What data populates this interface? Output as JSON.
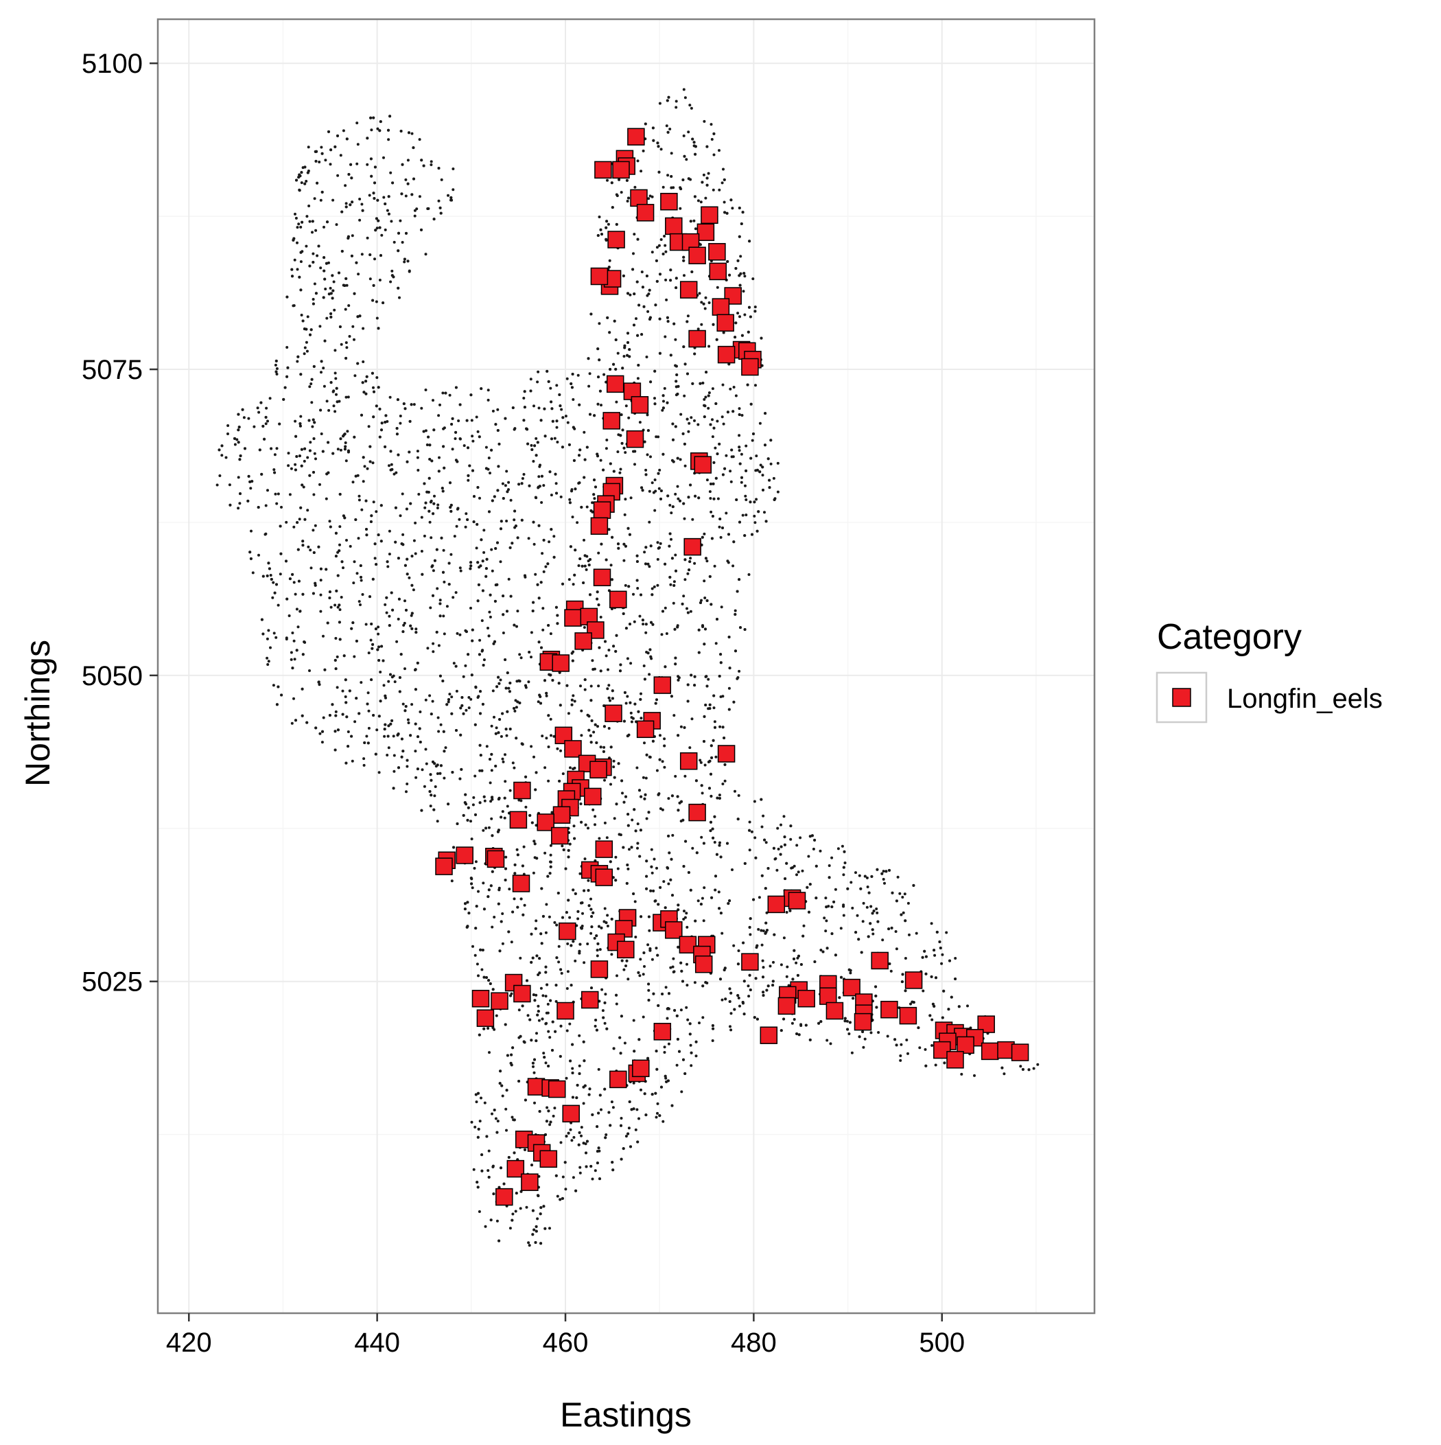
{
  "chart_data": {
    "type": "scatter",
    "xlabel": "Eastings",
    "ylabel": "Northings",
    "xlim": [
      416.7,
      516.2
    ],
    "ylim": [
      4997.9,
      5103.6
    ],
    "x_ticks": [
      420,
      440,
      460,
      480,
      500
    ],
    "y_ticks": [
      5025,
      5050,
      5075,
      5100
    ],
    "grid": true,
    "legend": {
      "title": "Category",
      "position": "right",
      "entries": [
        "Longfin_eels"
      ]
    },
    "colors": {
      "points": "#ed1c24",
      "point_outline": "#000000",
      "background_dots": "#1a1a1a",
      "panel_border": "#7f7f7f",
      "grid_major": "#ebebeb",
      "grid_minor": "#f5f5f5"
    },
    "background_note": "Dense field of small black dots covering the catchment shape",
    "series": [
      {
        "name": "Longfin_eels",
        "marker": "square",
        "points": [
          [
            467.5,
            5094.0
          ],
          [
            466.3,
            5092.2
          ],
          [
            466.5,
            5091.6
          ],
          [
            464.0,
            5091.3
          ],
          [
            465.9,
            5091.3
          ],
          [
            467.8,
            5089.0
          ],
          [
            471.0,
            5088.7
          ],
          [
            468.5,
            5087.8
          ],
          [
            475.3,
            5087.6
          ],
          [
            471.5,
            5086.7
          ],
          [
            474.9,
            5086.2
          ],
          [
            472.0,
            5085.4
          ],
          [
            465.4,
            5085.6
          ],
          [
            473.3,
            5085.4
          ],
          [
            476.1,
            5084.6
          ],
          [
            474.0,
            5084.3
          ],
          [
            476.2,
            5083.0
          ],
          [
            464.7,
            5081.8
          ],
          [
            465.0,
            5082.4
          ],
          [
            463.6,
            5082.6
          ],
          [
            473.1,
            5081.5
          ],
          [
            477.8,
            5081.0
          ],
          [
            476.5,
            5080.1
          ],
          [
            477.0,
            5078.8
          ],
          [
            474.0,
            5077.5
          ],
          [
            478.7,
            5076.6
          ],
          [
            479.3,
            5076.5
          ],
          [
            479.9,
            5075.8
          ],
          [
            477.1,
            5076.2
          ],
          [
            479.6,
            5075.2
          ],
          [
            465.3,
            5073.8
          ],
          [
            467.1,
            5073.2
          ],
          [
            467.9,
            5072.1
          ],
          [
            464.9,
            5070.8
          ],
          [
            467.4,
            5069.3
          ],
          [
            474.2,
            5067.5
          ],
          [
            474.6,
            5067.2
          ],
          [
            465.2,
            5065.5
          ],
          [
            464.9,
            5065.0
          ],
          [
            464.3,
            5064.0
          ],
          [
            463.9,
            5063.5
          ],
          [
            463.6,
            5062.2
          ],
          [
            473.5,
            5060.5
          ],
          [
            463.9,
            5058.0
          ],
          [
            465.6,
            5056.2
          ],
          [
            461.0,
            5055.4
          ],
          [
            460.8,
            5054.7
          ],
          [
            462.5,
            5054.8
          ],
          [
            463.2,
            5053.7
          ],
          [
            461.9,
            5052.8
          ],
          [
            458.5,
            5051.3
          ],
          [
            458.2,
            5051.1
          ],
          [
            459.5,
            5051.0
          ],
          [
            470.3,
            5049.2
          ],
          [
            465.1,
            5046.9
          ],
          [
            469.2,
            5046.3
          ],
          [
            468.5,
            5045.6
          ],
          [
            459.8,
            5045.1
          ],
          [
            460.8,
            5044.0
          ],
          [
            477.1,
            5043.6
          ],
          [
            473.1,
            5043.0
          ],
          [
            464.0,
            5042.5
          ],
          [
            462.3,
            5042.8
          ],
          [
            463.5,
            5042.3
          ],
          [
            461.1,
            5041.5
          ],
          [
            461.6,
            5040.8
          ],
          [
            460.7,
            5040.5
          ],
          [
            462.9,
            5040.1
          ],
          [
            455.4,
            5040.6
          ],
          [
            460.1,
            5039.9
          ],
          [
            460.5,
            5039.2
          ],
          [
            459.6,
            5038.6
          ],
          [
            474.0,
            5038.8
          ],
          [
            455.0,
            5038.2
          ],
          [
            457.9,
            5038.0
          ],
          [
            459.4,
            5036.9
          ],
          [
            464.1,
            5035.8
          ],
          [
            449.3,
            5035.3
          ],
          [
            447.4,
            5034.9
          ],
          [
            452.4,
            5035.2
          ],
          [
            452.6,
            5035.0
          ],
          [
            447.1,
            5034.4
          ],
          [
            462.6,
            5034.1
          ],
          [
            463.6,
            5033.8
          ],
          [
            464.1,
            5033.5
          ],
          [
            455.3,
            5033.0
          ],
          [
            484.1,
            5031.8
          ],
          [
            482.4,
            5031.3
          ],
          [
            484.6,
            5031.6
          ],
          [
            466.6,
            5030.2
          ],
          [
            470.2,
            5029.8
          ],
          [
            471.0,
            5030.1
          ],
          [
            471.5,
            5029.2
          ],
          [
            466.2,
            5029.3
          ],
          [
            460.2,
            5029.1
          ],
          [
            465.4,
            5028.2
          ],
          [
            466.4,
            5027.6
          ],
          [
            475.0,
            5028.0
          ],
          [
            473.0,
            5028.0
          ],
          [
            474.5,
            5027.2
          ],
          [
            474.7,
            5026.4
          ],
          [
            479.6,
            5026.6
          ],
          [
            493.4,
            5026.7
          ],
          [
            463.6,
            5026.0
          ],
          [
            497.0,
            5025.1
          ],
          [
            454.5,
            5024.9
          ],
          [
            487.9,
            5024.8
          ],
          [
            490.4,
            5024.5
          ],
          [
            484.8,
            5024.3
          ],
          [
            455.4,
            5024.0
          ],
          [
            483.6,
            5023.9
          ],
          [
            487.9,
            5023.8
          ],
          [
            485.6,
            5023.6
          ],
          [
            451.0,
            5023.6
          ],
          [
            453.0,
            5023.4
          ],
          [
            491.7,
            5023.3
          ],
          [
            462.6,
            5023.5
          ],
          [
            483.5,
            5023.0
          ],
          [
            460.0,
            5022.6
          ],
          [
            488.6,
            5022.6
          ],
          [
            491.7,
            5022.4
          ],
          [
            494.4,
            5022.7
          ],
          [
            496.4,
            5022.2
          ],
          [
            451.5,
            5022.0
          ],
          [
            491.6,
            5021.7
          ],
          [
            504.7,
            5021.5
          ],
          [
            470.3,
            5020.9
          ],
          [
            481.6,
            5020.6
          ],
          [
            500.2,
            5021.0
          ],
          [
            501.4,
            5020.8
          ],
          [
            502.2,
            5020.5
          ],
          [
            503.5,
            5020.4
          ],
          [
            500.6,
            5020.1
          ],
          [
            502.5,
            5019.8
          ],
          [
            500.0,
            5019.4
          ],
          [
            505.1,
            5019.3
          ],
          [
            506.8,
            5019.4
          ],
          [
            508.3,
            5019.2
          ],
          [
            501.4,
            5018.6
          ],
          [
            467.6,
            5017.5
          ],
          [
            468.0,
            5017.9
          ],
          [
            465.6,
            5017.0
          ],
          [
            456.9,
            5016.4
          ],
          [
            458.4,
            5016.3
          ],
          [
            459.1,
            5016.2
          ],
          [
            460.6,
            5014.2
          ],
          [
            455.6,
            5012.1
          ],
          [
            456.9,
            5011.8
          ],
          [
            457.5,
            5011.0
          ],
          [
            458.2,
            5010.5
          ],
          [
            454.7,
            5009.7
          ],
          [
            456.2,
            5008.6
          ],
          [
            453.5,
            5007.4
          ]
        ]
      }
    ]
  }
}
